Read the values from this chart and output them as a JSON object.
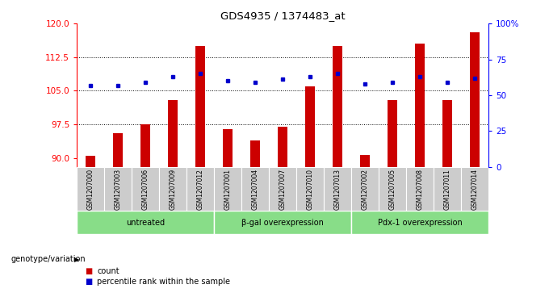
{
  "title": "GDS4935 / 1374483_at",
  "samples": [
    "GSM1207000",
    "GSM1207003",
    "GSM1207006",
    "GSM1207009",
    "GSM1207012",
    "GSM1207001",
    "GSM1207004",
    "GSM1207007",
    "GSM1207010",
    "GSM1207013",
    "GSM1207002",
    "GSM1207005",
    "GSM1207008",
    "GSM1207011",
    "GSM1207014"
  ],
  "groups": [
    {
      "label": "untreated",
      "start": 0,
      "end": 5
    },
    {
      "label": "β-gal overexpression",
      "start": 5,
      "end": 10
    },
    {
      "label": "Pdx-1 overexpression",
      "start": 10,
      "end": 15
    }
  ],
  "counts": [
    90.5,
    95.5,
    97.5,
    103.0,
    115.0,
    96.5,
    94.0,
    97.0,
    106.0,
    115.0,
    90.7,
    103.0,
    115.5,
    103.0,
    118.0
  ],
  "percentiles": [
    57,
    57,
    59,
    63,
    65,
    60,
    59,
    61,
    63,
    65,
    58,
    59,
    63,
    59,
    62
  ],
  "ylim_left": [
    88,
    120
  ],
  "ylim_right": [
    0,
    100
  ],
  "yticks_left": [
    90,
    97.5,
    105,
    112.5,
    120
  ],
  "yticks_right": [
    0,
    25,
    50,
    75,
    100
  ],
  "bar_color": "#cc0000",
  "dot_color": "#0000cc",
  "group_bg_color": "#88dd88",
  "sample_bg_color": "#cccccc",
  "legend_count_label": "count",
  "legend_pct_label": "percentile rank within the sample",
  "genotype_label": "genotype/variation"
}
